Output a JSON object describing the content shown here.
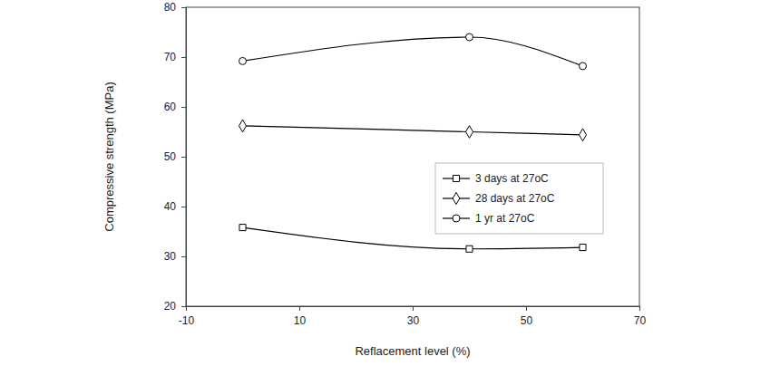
{
  "chart_data": {
    "type": "line",
    "x_label": "Reflacement level (%)",
    "y_label": "Compressive strength (MPa)",
    "x": [
      0,
      40,
      60
    ],
    "series": [
      {
        "name": "3 days at 27oC",
        "color": "#000000",
        "marker": "square",
        "line_style": "solid",
        "values": [
          35.8,
          31.5,
          31.8
        ]
      },
      {
        "name": "28 days at 27oC",
        "color": "#000000",
        "marker": "diamond",
        "line_style": "solid",
        "values": [
          56.2,
          55.0,
          54.4
        ]
      },
      {
        "name": "1 yr at 27oC",
        "color": "#000000",
        "marker": "circle",
        "line_style": "solid",
        "values": [
          69.2,
          74.0,
          68.2
        ]
      }
    ],
    "xlim": [
      -10,
      70
    ],
    "xticks": [
      -10,
      10,
      30,
      50,
      70
    ],
    "ylim": [
      20,
      80
    ],
    "yticks": [
      20,
      30,
      40,
      50,
      60,
      70,
      80
    ],
    "grid": false,
    "legend": "right"
  }
}
